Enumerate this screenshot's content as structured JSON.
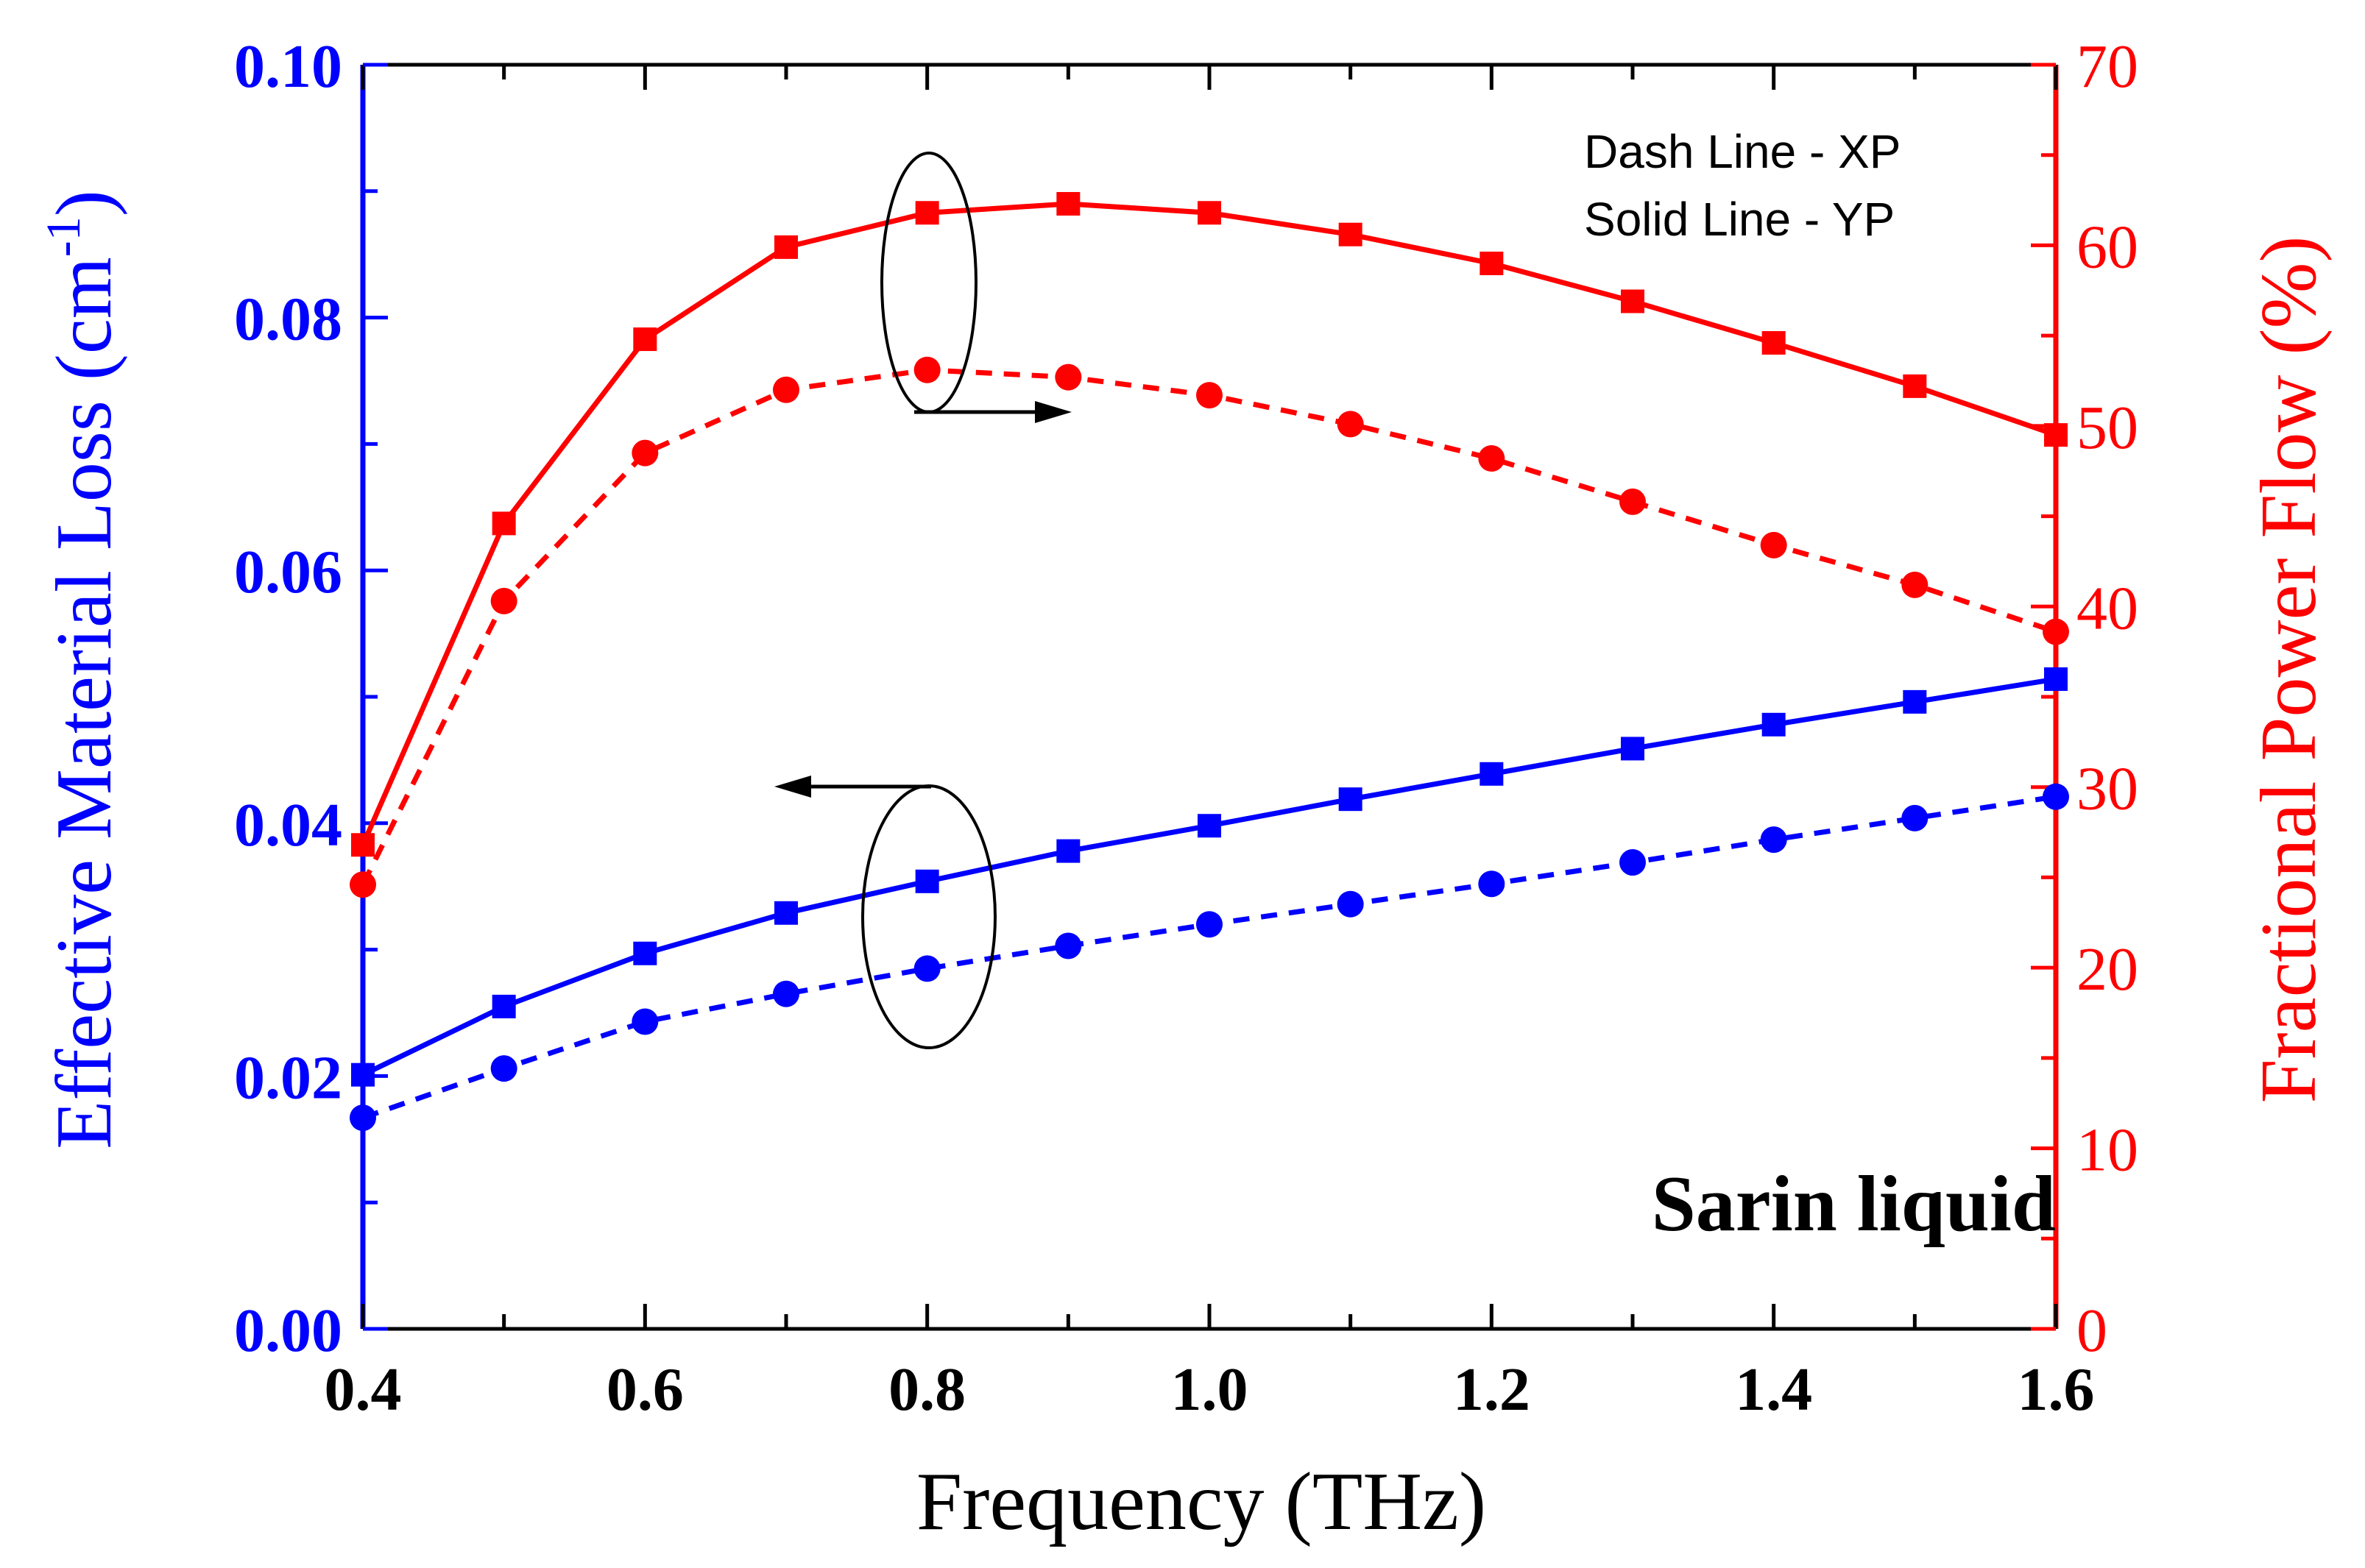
{
  "chart_data": {
    "type": "line",
    "xlabel": "Frequency (THz)",
    "ylabel_left": "Effective Material Loss (cm",
    "ylabel_left_sup": "-1",
    "ylabel_left_close": ")",
    "ylabel_right": "Fractional Power Flow (%)",
    "xlim": [
      0.4,
      1.6
    ],
    "ylim_left": [
      0.0,
      0.1
    ],
    "ylim_right": [
      0,
      70
    ],
    "x_ticks": [
      "0.4",
      "0.6",
      "0.8",
      "1.0",
      "1.2",
      "1.4",
      "1.6"
    ],
    "y_left_ticks": [
      "0.00",
      "0.02",
      "0.04",
      "0.06",
      "0.08",
      "0.10"
    ],
    "y_right_ticks": [
      "0",
      "10",
      "20",
      "30",
      "40",
      "50",
      "60",
      "70"
    ],
    "legend": [
      "Dash Line - XP",
      "Solid Line - YP"
    ],
    "annotation": "Sarin liquid",
    "colors": {
      "loss": "#0000ff",
      "power": "#ff0000",
      "axis": "#000000"
    },
    "x": [
      0.4,
      0.5,
      0.6,
      0.7,
      0.8,
      0.9,
      1.0,
      1.1,
      1.2,
      1.3,
      1.4,
      1.5,
      1.6
    ],
    "series": [
      {
        "name": "Effective Material Loss - YP",
        "axis": "left",
        "style": "solid",
        "marker": "square",
        "color": "#0000ff",
        "values": [
          0.0201,
          0.0255,
          0.0297,
          0.0329,
          0.0354,
          0.0378,
          0.0398,
          0.0419,
          0.0439,
          0.0459,
          0.0478,
          0.0496,
          0.0514
        ]
      },
      {
        "name": "Effective Material Loss - XP",
        "axis": "left",
        "style": "dash",
        "marker": "circle",
        "color": "#0000ff",
        "values": [
          0.0167,
          0.0206,
          0.0243,
          0.0265,
          0.0285,
          0.0303,
          0.032,
          0.0336,
          0.0352,
          0.0369,
          0.0387,
          0.0404,
          0.0421
        ]
      },
      {
        "name": "Fractional Power Flow - YP",
        "axis": "right",
        "style": "solid",
        "marker": "square",
        "color": "#ff0000",
        "values": [
          26.8,
          44.6,
          54.8,
          59.9,
          61.8,
          62.3,
          61.8,
          60.6,
          59.0,
          56.9,
          54.6,
          52.2,
          49.5
        ]
      },
      {
        "name": "Fractional Power Flow - XP",
        "axis": "right",
        "style": "dash",
        "marker": "circle",
        "color": "#ff0000",
        "values": [
          24.6,
          40.3,
          48.5,
          52.0,
          53.1,
          52.7,
          51.7,
          50.1,
          48.2,
          45.8,
          43.4,
          41.2,
          38.6
        ]
      }
    ]
  }
}
